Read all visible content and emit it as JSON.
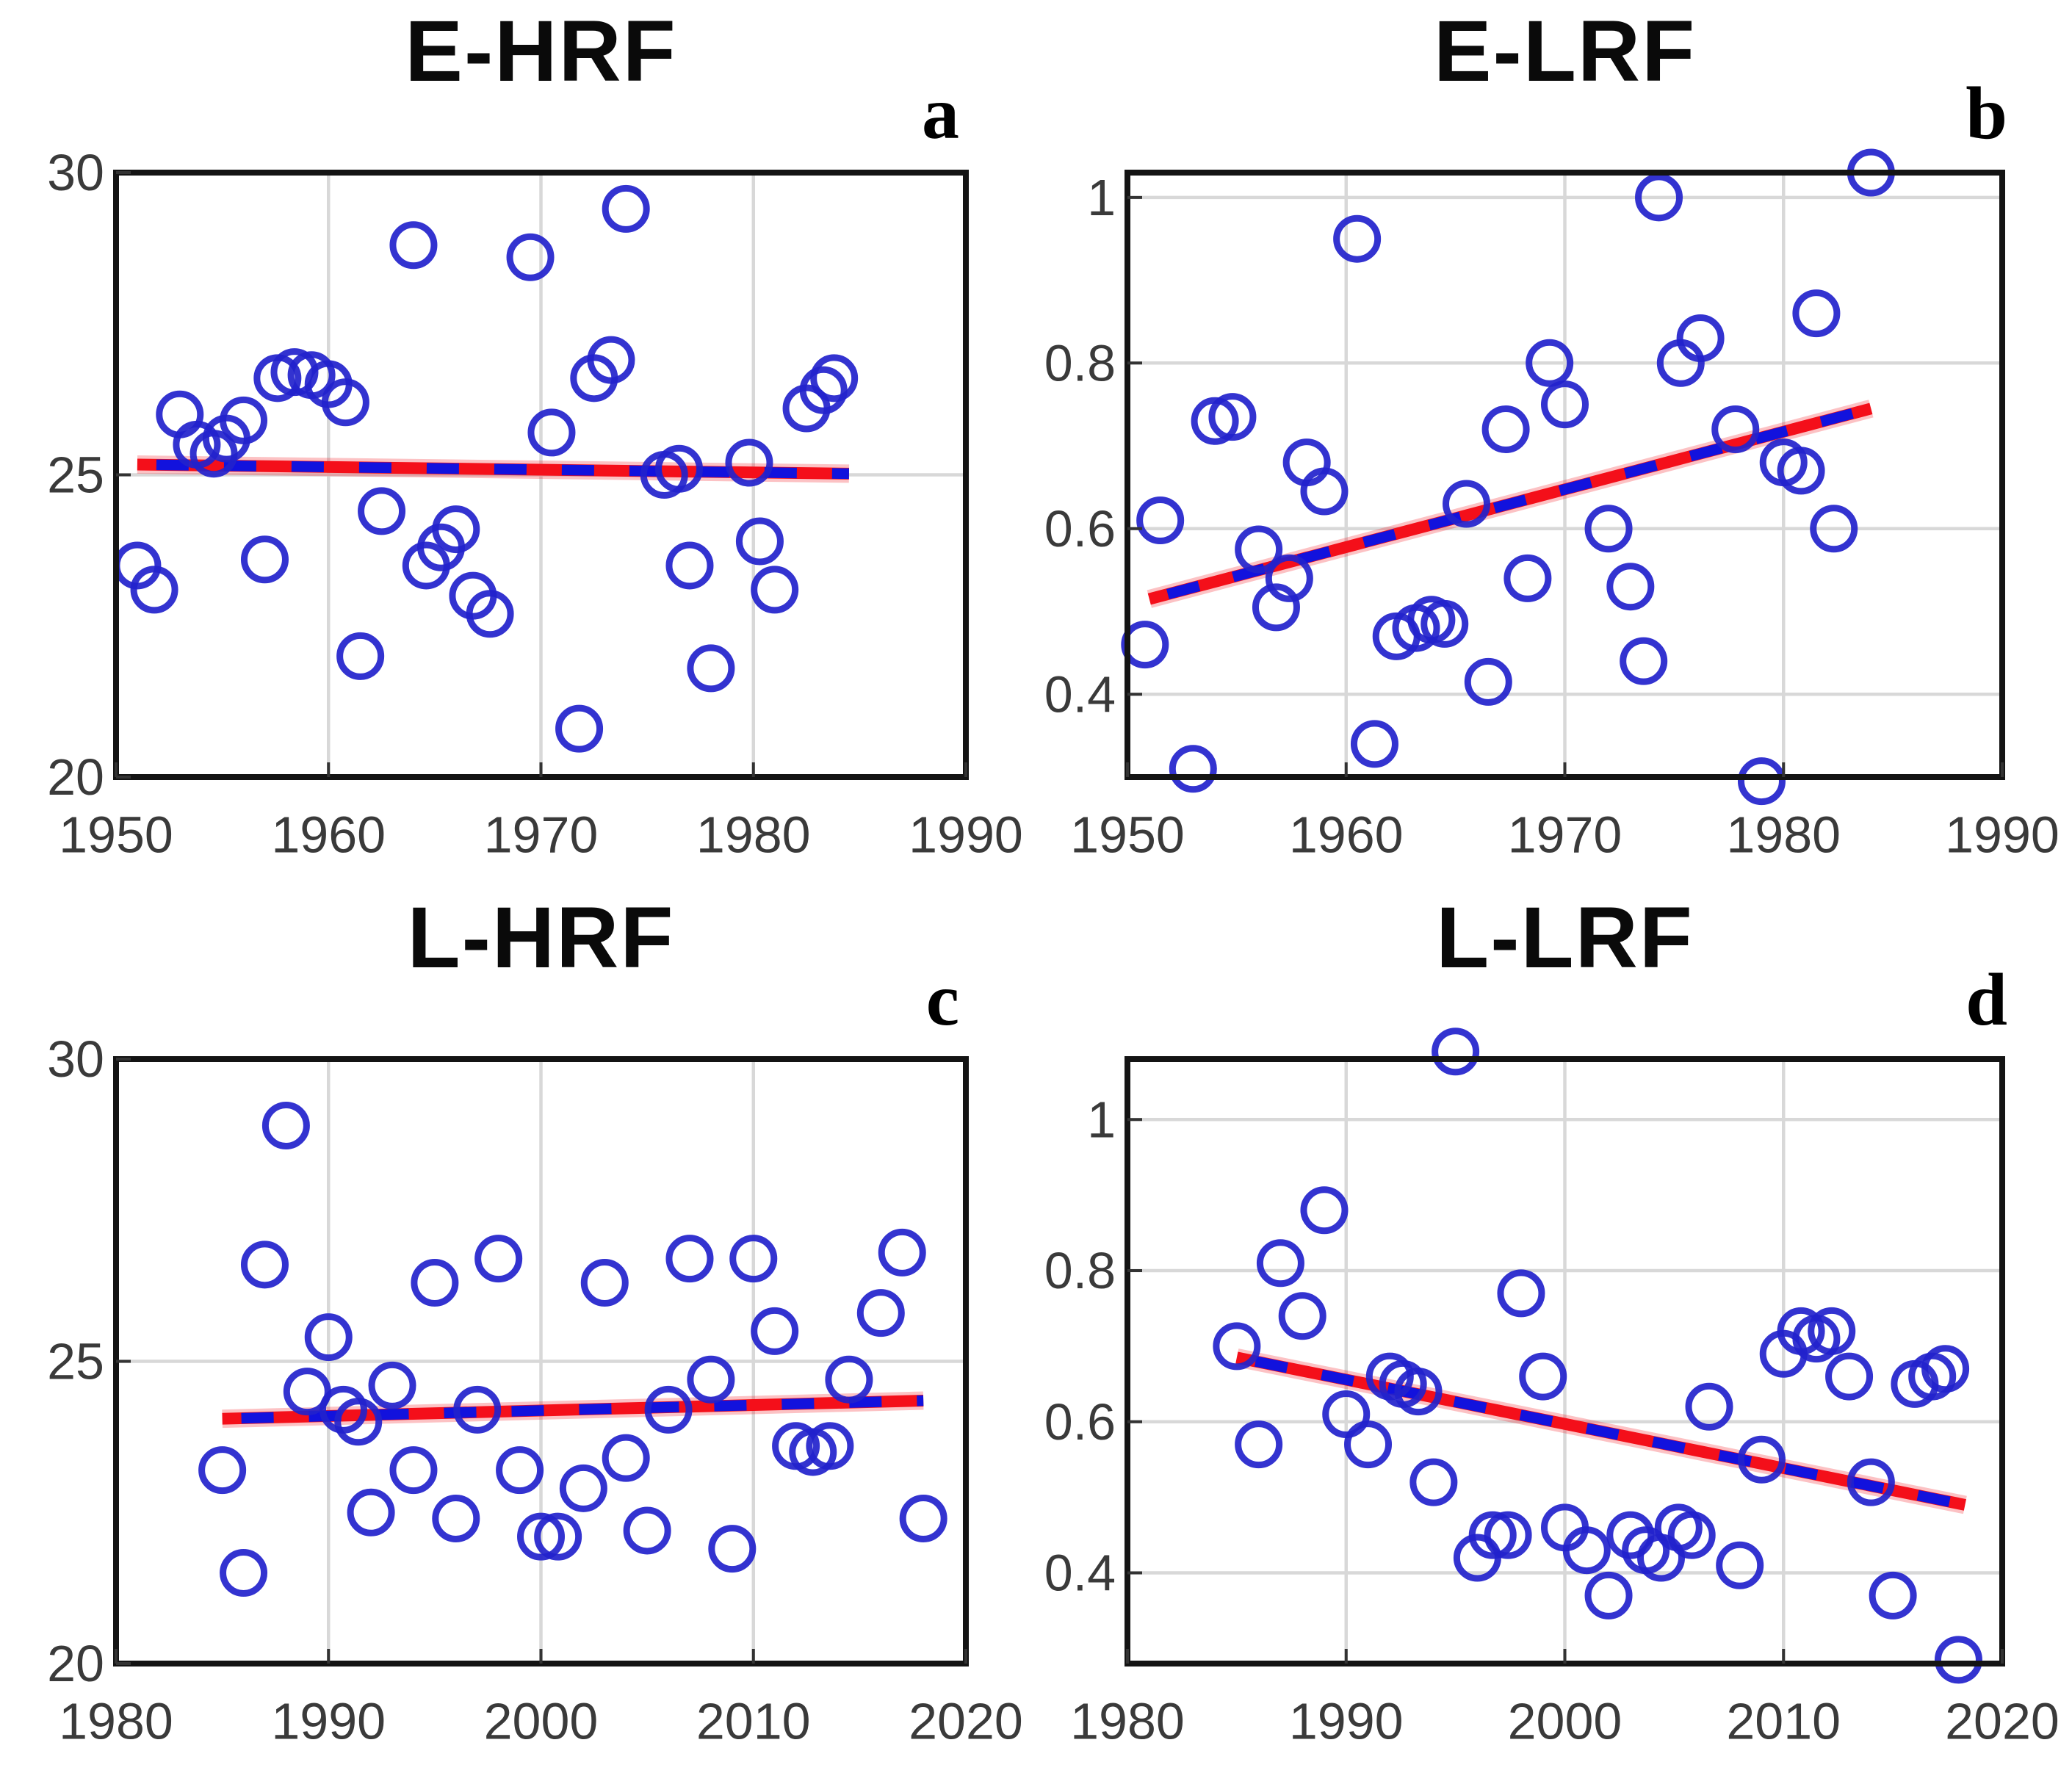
{
  "figure": {
    "background": "#ffffff",
    "layout": "2x2-scatter-panels"
  },
  "style": {
    "marker_color": "#2222cc",
    "trend_red": "#f40f1a",
    "trend_blue": "#1212dd",
    "grid_color": "#d8d8d8",
    "frame_color": "#141414",
    "tick_color": "#333333",
    "tick_label_color": "#3a3a3a",
    "title_color": "#0a0a0a"
  },
  "chart_data": [
    {
      "type": "scatter",
      "panel_label": "a",
      "title": "E-HRF",
      "xlim": [
        1950,
        1990
      ],
      "xticks": [
        1950,
        1960,
        1970,
        1980,
        1990
      ],
      "xtick_labels": [
        "1950",
        "1960",
        "1970",
        "1980",
        "1990"
      ],
      "ylim": [
        20,
        30
      ],
      "yticks": [
        20,
        25,
        30
      ],
      "ytick_labels": [
        "20",
        "25",
        "30"
      ],
      "grid": true,
      "trend_line": {
        "x": [
          1951,
          1984.5
        ],
        "y": [
          25.17,
          25.02
        ],
        "style": "red-solid-with-blue-dashes"
      },
      "points": [
        [
          1951,
          23.5
        ],
        [
          1951.8,
          23.1
        ],
        [
          1953,
          26.0
        ],
        [
          1953.8,
          25.5
        ],
        [
          1954.6,
          25.35
        ],
        [
          1955.2,
          25.6
        ],
        [
          1956,
          25.9
        ],
        [
          1957,
          23.6
        ],
        [
          1957.6,
          26.6
        ],
        [
          1958.4,
          26.7
        ],
        [
          1959.2,
          26.65
        ],
        [
          1960,
          26.5
        ],
        [
          1960.8,
          26.2
        ],
        [
          1961.5,
          22.0
        ],
        [
          1962.5,
          24.4
        ],
        [
          1964,
          28.8
        ],
        [
          1964.6,
          23.5
        ],
        [
          1965.3,
          23.8
        ],
        [
          1966,
          24.1
        ],
        [
          1966.8,
          23.0
        ],
        [
          1967.6,
          22.7
        ],
        [
          1969.5,
          28.6
        ],
        [
          1970.5,
          25.7
        ],
        [
          1971.8,
          20.8
        ],
        [
          1972.5,
          26.6
        ],
        [
          1973.3,
          26.9
        ],
        [
          1974,
          29.4
        ],
        [
          1975.8,
          25.0
        ],
        [
          1976.5,
          25.1
        ],
        [
          1977,
          23.5
        ],
        [
          1978,
          21.8
        ],
        [
          1979.8,
          25.2
        ],
        [
          1980.3,
          23.9
        ],
        [
          1981,
          23.1
        ],
        [
          1982.5,
          26.1
        ],
        [
          1983.3,
          26.4
        ],
        [
          1983.8,
          26.6
        ]
      ]
    },
    {
      "type": "scatter",
      "panel_label": "b",
      "title": "E-LRF",
      "xlim": [
        1950,
        1990
      ],
      "xticks": [
        1950,
        1960,
        1970,
        1980,
        1990
      ],
      "xtick_labels": [
        "1950",
        "1960",
        "1970",
        "1980",
        "1990"
      ],
      "ylim": [
        0.3,
        1.03
      ],
      "yticks": [
        0.4,
        0.6,
        0.8,
        1.0
      ],
      "ytick_labels": [
        "0.4",
        "0.6",
        "0.8",
        "1"
      ],
      "grid": true,
      "trend_line": {
        "x": [
          1951,
          1984
        ],
        "y": [
          0.515,
          0.745
        ],
        "style": "red-solid-with-blue-dashes"
      },
      "points": [
        [
          1950.8,
          0.46
        ],
        [
          1951.5,
          0.61
        ],
        [
          1953,
          0.31
        ],
        [
          1954,
          0.73
        ],
        [
          1954.8,
          0.735
        ],
        [
          1956,
          0.575
        ],
        [
          1956.8,
          0.505
        ],
        [
          1957.4,
          0.54
        ],
        [
          1958.2,
          0.68
        ],
        [
          1959,
          0.645
        ],
        [
          1960.5,
          0.95
        ],
        [
          1961.3,
          0.34
        ],
        [
          1962.3,
          0.47
        ],
        [
          1963.2,
          0.48
        ],
        [
          1963.9,
          0.49
        ],
        [
          1964.5,
          0.485
        ],
        [
          1965.5,
          0.63
        ],
        [
          1966.5,
          0.415
        ],
        [
          1967.3,
          0.72
        ],
        [
          1968.3,
          0.54
        ],
        [
          1969.3,
          0.8
        ],
        [
          1970,
          0.75
        ],
        [
          1972,
          0.6
        ],
        [
          1973,
          0.53
        ],
        [
          1973.6,
          0.44
        ],
        [
          1974.3,
          1.0
        ],
        [
          1975.3,
          0.8
        ],
        [
          1976.2,
          0.83
        ],
        [
          1977.8,
          0.72
        ],
        [
          1979,
          0.295
        ],
        [
          1980,
          0.68
        ],
        [
          1980.8,
          0.67
        ],
        [
          1981.5,
          0.86
        ],
        [
          1982.3,
          0.6
        ],
        [
          1984,
          1.03
        ]
      ]
    },
    {
      "type": "scatter",
      "panel_label": "c",
      "title": "L-HRF",
      "xlim": [
        1980,
        2020
      ],
      "xticks": [
        1980,
        1990,
        2000,
        2010,
        2020
      ],
      "xtick_labels": [
        "1980",
        "1990",
        "2000",
        "2010",
        "2020"
      ],
      "ylim": [
        20,
        30
      ],
      "yticks": [
        20,
        25,
        30
      ],
      "ytick_labels": [
        "20",
        "25",
        "30"
      ],
      "grid": true,
      "trend_line": {
        "x": [
          1985,
          2018
        ],
        "y": [
          24.05,
          24.35
        ],
        "style": "red-solid-with-blue-dashes"
      },
      "points": [
        [
          1985,
          23.2
        ],
        [
          1986,
          21.5
        ],
        [
          1987,
          26.6
        ],
        [
          1988,
          28.9
        ],
        [
          1989,
          24.5
        ],
        [
          1990,
          25.4
        ],
        [
          1990.7,
          24.2
        ],
        [
          1991.4,
          24.0
        ],
        [
          1992,
          22.5
        ],
        [
          1993,
          24.6
        ],
        [
          1994,
          23.2
        ],
        [
          1995,
          26.3
        ],
        [
          1996,
          22.4
        ],
        [
          1997,
          24.2
        ],
        [
          1998,
          26.7
        ],
        [
          1999,
          23.2
        ],
        [
          2000,
          22.1
        ],
        [
          2000.8,
          22.1
        ],
        [
          2002,
          22.9
        ],
        [
          2003,
          26.3
        ],
        [
          2004,
          23.4
        ],
        [
          2005,
          22.2
        ],
        [
          2006,
          24.2
        ],
        [
          2007,
          26.7
        ],
        [
          2008,
          24.7
        ],
        [
          2009,
          21.9
        ],
        [
          2010,
          26.7
        ],
        [
          2011,
          25.5
        ],
        [
          2012,
          23.6
        ],
        [
          2012.8,
          23.5
        ],
        [
          2013.6,
          23.6
        ],
        [
          2014.5,
          24.7
        ],
        [
          2016,
          25.8
        ],
        [
          2017,
          26.8
        ],
        [
          2018,
          22.4
        ]
      ]
    },
    {
      "type": "scatter",
      "panel_label": "d",
      "title": "L-LRF",
      "xlim": [
        1980,
        2020
      ],
      "xticks": [
        1980,
        1990,
        2000,
        2010,
        2020
      ],
      "xtick_labels": [
        "1980",
        "1990",
        "2000",
        "2010",
        "2020"
      ],
      "ylim": [
        0.28,
        1.08
      ],
      "yticks": [
        0.4,
        0.6,
        0.8,
        1.0
      ],
      "ytick_labels": [
        "0.4",
        "0.6",
        "0.8",
        "1"
      ],
      "grid": true,
      "trend_line": {
        "x": [
          1985,
          2018.3
        ],
        "y": [
          0.685,
          0.49
        ],
        "style": "red-solid-with-blue-dashes"
      },
      "points": [
        [
          1985,
          0.7
        ],
        [
          1986,
          0.57
        ],
        [
          1987,
          0.81
        ],
        [
          1988,
          0.74
        ],
        [
          1989,
          0.88
        ],
        [
          1990,
          0.61
        ],
        [
          1991,
          0.57
        ],
        [
          1992,
          0.66
        ],
        [
          1992.6,
          0.65
        ],
        [
          1993.3,
          0.64
        ],
        [
          1994,
          0.52
        ],
        [
          1995,
          1.09
        ],
        [
          1996,
          0.42
        ],
        [
          1996.7,
          0.45
        ],
        [
          1997.4,
          0.45
        ],
        [
          1998,
          0.77
        ],
        [
          1999,
          0.66
        ],
        [
          2000,
          0.46
        ],
        [
          2001,
          0.43
        ],
        [
          2002,
          0.37
        ],
        [
          2003,
          0.45
        ],
        [
          2003.7,
          0.43
        ],
        [
          2004.4,
          0.42
        ],
        [
          2005.2,
          0.46
        ],
        [
          2005.8,
          0.45
        ],
        [
          2006.6,
          0.62
        ],
        [
          2008,
          0.41
        ],
        [
          2009,
          0.55
        ],
        [
          2010,
          0.69
        ],
        [
          2010.8,
          0.72
        ],
        [
          2011.5,
          0.71
        ],
        [
          2012.2,
          0.72
        ],
        [
          2013,
          0.66
        ],
        [
          2014,
          0.52
        ],
        [
          2015,
          0.37
        ],
        [
          2016,
          0.65
        ],
        [
          2016.8,
          0.66
        ],
        [
          2017.4,
          0.67
        ],
        [
          2018,
          0.285
        ]
      ]
    }
  ]
}
